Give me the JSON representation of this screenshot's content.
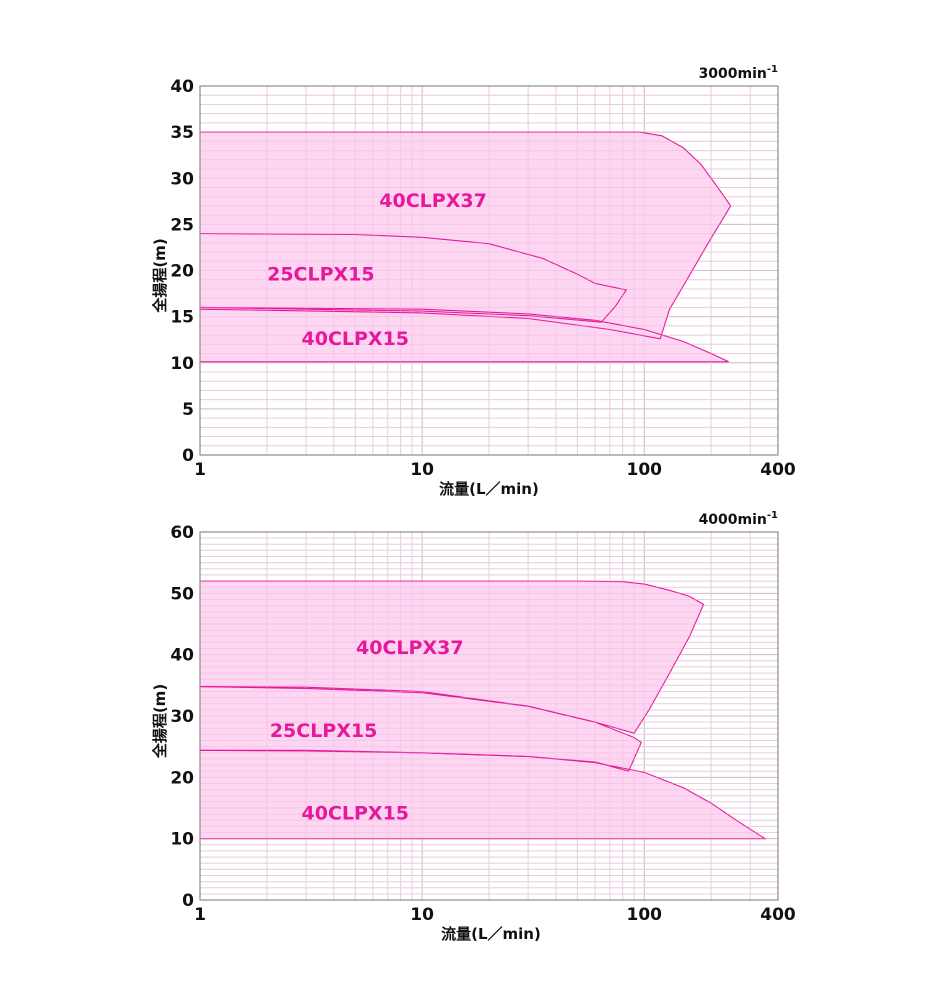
{
  "colors": {
    "magenta": "#e6199b",
    "fill": "#fdd6f2",
    "grid_minor": "#e5e5e5",
    "grid_major": "#c8c8c8",
    "frame": "#8c8c8c"
  },
  "chart_data": [
    {
      "type": "area",
      "speed_label": "3000min",
      "speed_sup": "-1",
      "xlabel": "流量(L／min)",
      "ylabel": "全揚程(m)",
      "x_scale": "log",
      "xlim": [
        1,
        400
      ],
      "ylim": [
        0,
        40
      ],
      "x_ticks": [
        {
          "value": 1,
          "label": "1"
        },
        {
          "value": 10,
          "label": "10"
        },
        {
          "value": 100,
          "label": "100"
        },
        {
          "value": 400,
          "label": "400"
        }
      ],
      "y_ticks": [
        0,
        5,
        10,
        15,
        20,
        25,
        30,
        35,
        40
      ],
      "grid": true,
      "series": [
        {
          "name": "40CLPX37",
          "label_at": [
            11.2,
            27.5
          ],
          "boundary": [
            [
              1,
              35
            ],
            [
              10,
              35
            ],
            [
              50,
              35
            ],
            [
              95,
              35
            ],
            [
              120,
              34.6
            ],
            [
              150,
              33.3
            ],
            [
              180,
              31.5
            ],
            [
              210,
              29.3
            ],
            [
              245,
              27
            ],
            [
              200,
              23.5
            ],
            [
              160,
              19.5
            ],
            [
              130,
              15.8
            ],
            [
              118,
              12.6
            ],
            [
              70,
              13.6
            ],
            [
              30,
              14.8
            ],
            [
              10,
              15.4
            ],
            [
              1,
              15.8
            ]
          ]
        },
        {
          "name": "25CLPX15",
          "label_at": [
            3.5,
            19.5
          ],
          "boundary": [
            [
              1,
              24
            ],
            [
              5,
              23.9
            ],
            [
              10,
              23.6
            ],
            [
              20,
              22.9
            ],
            [
              35,
              21.3
            ],
            [
              50,
              19.6
            ],
            [
              60,
              18.6
            ],
            [
              83,
              17.9
            ],
            [
              74,
              16.1
            ],
            [
              64,
              14.4
            ],
            [
              30,
              15.1
            ],
            [
              10,
              15.6
            ],
            [
              1,
              16
            ]
          ]
        },
        {
          "name": "40CLPX15",
          "label_at": [
            5,
            12.5
          ],
          "boundary": [
            [
              1,
              16
            ],
            [
              10,
              15.8
            ],
            [
              30,
              15.3
            ],
            [
              60,
              14.6
            ],
            [
              100,
              13.6
            ],
            [
              150,
              12.3
            ],
            [
              200,
              11
            ],
            [
              240,
              10.1
            ],
            [
              1,
              10.1
            ]
          ]
        }
      ]
    },
    {
      "type": "area",
      "speed_label": "4000min",
      "speed_sup": "-1",
      "xlabel": "流量(L／min)",
      "ylabel": "全揚程(m)",
      "x_scale": "log",
      "xlim": [
        1,
        400
      ],
      "ylim": [
        0,
        60
      ],
      "x_ticks": [
        {
          "value": 1,
          "label": "1"
        },
        {
          "value": 10,
          "label": "10"
        },
        {
          "value": 100,
          "label": "100"
        },
        {
          "value": 400,
          "label": "400"
        }
      ],
      "y_ticks": [
        0,
        10,
        20,
        30,
        40,
        50,
        60
      ],
      "grid": true,
      "series": [
        {
          "name": "40CLPX37",
          "label_at": [
            8.8,
            41
          ],
          "boundary": [
            [
              1,
              52
            ],
            [
              10,
              52
            ],
            [
              50,
              52
            ],
            [
              80,
              51.9
            ],
            [
              100,
              51.5
            ],
            [
              130,
              50.5
            ],
            [
              160,
              49.5
            ],
            [
              185,
              48.2
            ],
            [
              160,
              43
            ],
            [
              130,
              37
            ],
            [
              105,
              31
            ],
            [
              90,
              27.2
            ],
            [
              60,
              29
            ],
            [
              30,
              31.6
            ],
            [
              10,
              33.8
            ],
            [
              3,
              34.5
            ],
            [
              1,
              34.8
            ]
          ]
        },
        {
          "name": "25CLPX15",
          "label_at": [
            3.6,
            27.5
          ],
          "boundary": [
            [
              1,
              34.8
            ],
            [
              3,
              34.7
            ],
            [
              10,
              34
            ],
            [
              30,
              31.6
            ],
            [
              60,
              29
            ],
            [
              90,
              26.5
            ],
            [
              97,
              25.7
            ],
            [
              85,
              21
            ],
            [
              60,
              22.5
            ],
            [
              30,
              23.4
            ],
            [
              10,
              24
            ],
            [
              3,
              24.3
            ],
            [
              1,
              24.4
            ]
          ]
        },
        {
          "name": "40CLPX15",
          "label_at": [
            5,
            14
          ],
          "boundary": [
            [
              1,
              24.4
            ],
            [
              3,
              24.4
            ],
            [
              10,
              24
            ],
            [
              30,
              23.4
            ],
            [
              60,
              22.4
            ],
            [
              100,
              20.8
            ],
            [
              150,
              18.3
            ],
            [
              200,
              15.8
            ],
            [
              260,
              13
            ],
            [
              350,
              10
            ],
            [
              1,
              10
            ]
          ]
        }
      ]
    }
  ]
}
